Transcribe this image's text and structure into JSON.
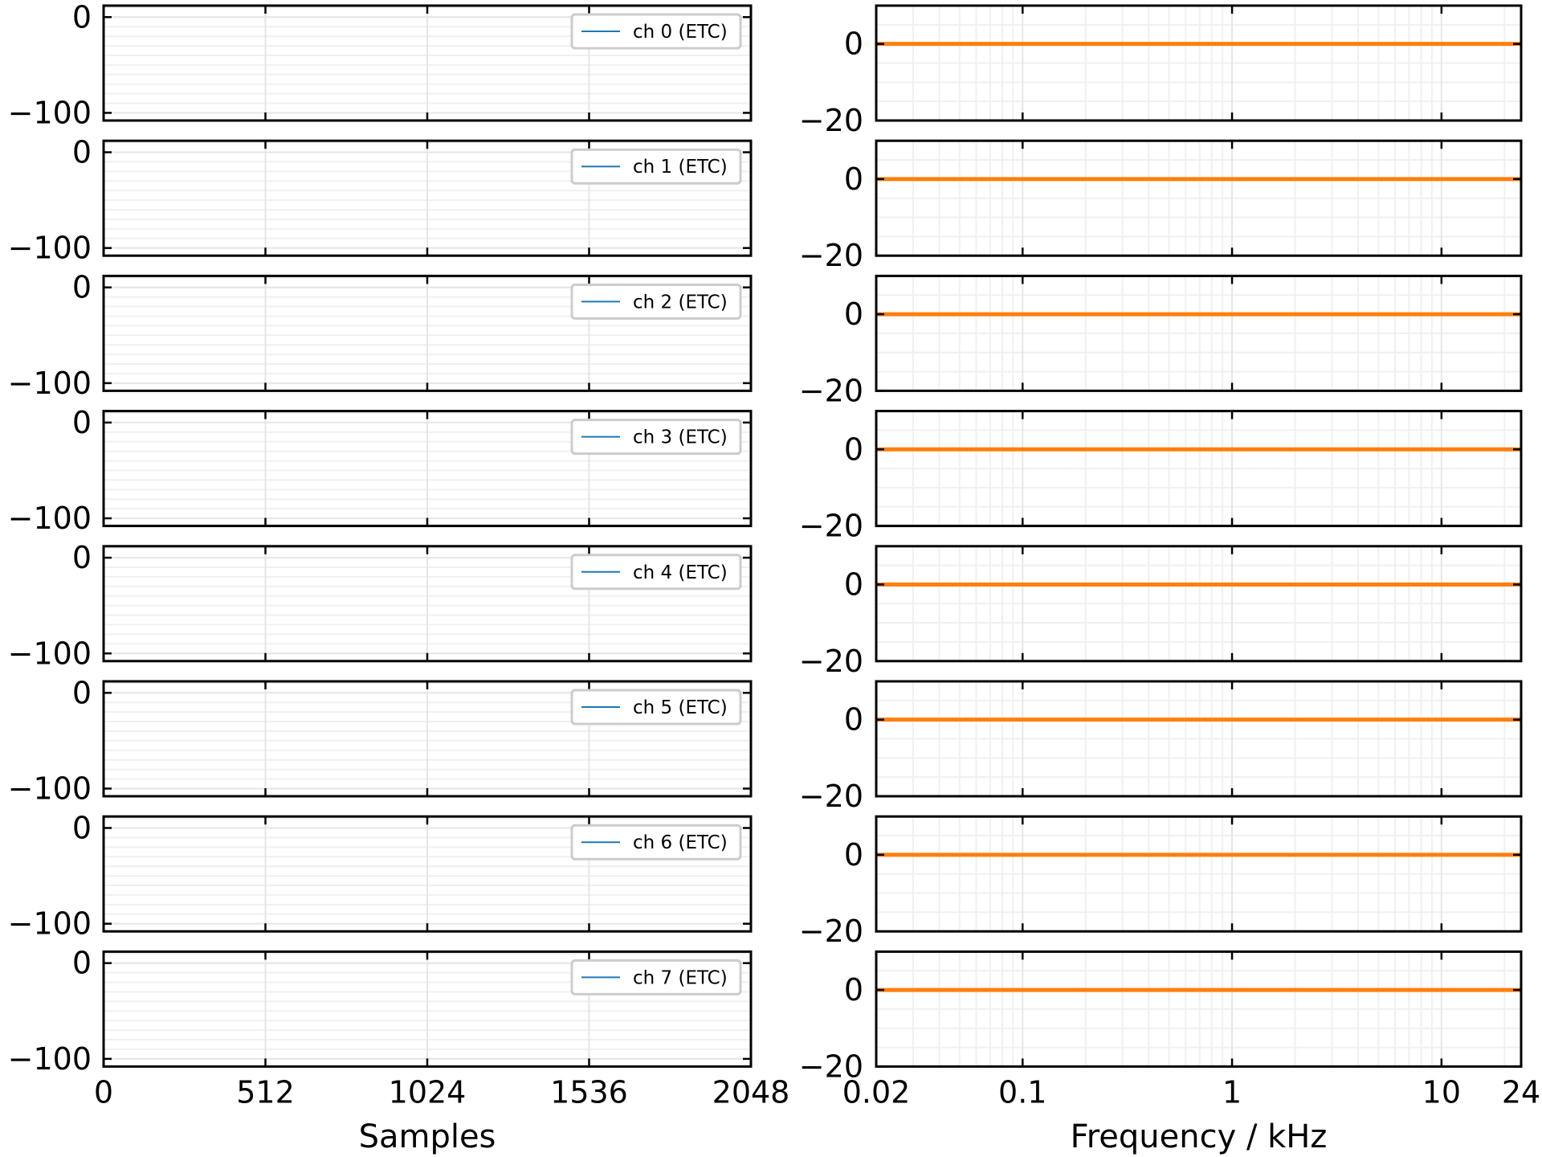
{
  "colors": {
    "etc_line": "#1f77b4",
    "spectrum_line": "#ff7f0e",
    "grid": "#e6e6e6",
    "frame": "#000000",
    "legend_border": "#cccccc"
  },
  "chart_data": [
    {
      "type": "line",
      "panel": "time-domain",
      "xlabel": "Samples",
      "xlim": [
        0,
        2048
      ],
      "x_ticks": [
        0,
        512,
        1024,
        1536,
        2048
      ],
      "x_tick_labels": [
        "0",
        "512",
        "1024",
        "1536",
        "2048"
      ],
      "ylim": [
        -108,
        12
      ],
      "y_ticks": [
        0,
        -100
      ],
      "y_tick_labels": [
        "0",
        "−100"
      ],
      "grid": true,
      "legend_position": "upper-right",
      "series": [
        {
          "name": "ch 0 (ETC)",
          "values": []
        },
        {
          "name": "ch 1 (ETC)",
          "values": []
        },
        {
          "name": "ch 2 (ETC)",
          "values": []
        },
        {
          "name": "ch 3 (ETC)",
          "values": []
        },
        {
          "name": "ch 4 (ETC)",
          "values": []
        },
        {
          "name": "ch 5 (ETC)",
          "values": []
        },
        {
          "name": "ch 6 (ETC)",
          "values": []
        },
        {
          "name": "ch 7 (ETC)",
          "values": []
        }
      ]
    },
    {
      "type": "line",
      "panel": "frequency-domain",
      "xlabel": "Frequency / kHz",
      "xscale": "log",
      "xlim": [
        0.02,
        24
      ],
      "x_ticks": [
        0.02,
        0.1,
        1,
        10,
        24
      ],
      "x_tick_labels": [
        "0.02",
        "0.1",
        "1",
        "10",
        "24"
      ],
      "ylim": [
        -20,
        10
      ],
      "y_ticks": [
        0,
        -20
      ],
      "y_tick_labels": [
        "0",
        "−20"
      ],
      "grid": true,
      "series": [
        {
          "x": [
            0.02,
            24
          ],
          "values": [
            0,
            0
          ]
        },
        {
          "x": [
            0.02,
            24
          ],
          "values": [
            0,
            0
          ]
        },
        {
          "x": [
            0.02,
            24
          ],
          "values": [
            0,
            0
          ]
        },
        {
          "x": [
            0.02,
            24
          ],
          "values": [
            0,
            0
          ]
        },
        {
          "x": [
            0.02,
            24
          ],
          "values": [
            0,
            0
          ]
        },
        {
          "x": [
            0.02,
            24
          ],
          "values": [
            0,
            0
          ]
        },
        {
          "x": [
            0.02,
            24
          ],
          "values": [
            0,
            0
          ]
        },
        {
          "x": [
            0.02,
            24
          ],
          "values": [
            0,
            0
          ]
        }
      ]
    }
  ]
}
